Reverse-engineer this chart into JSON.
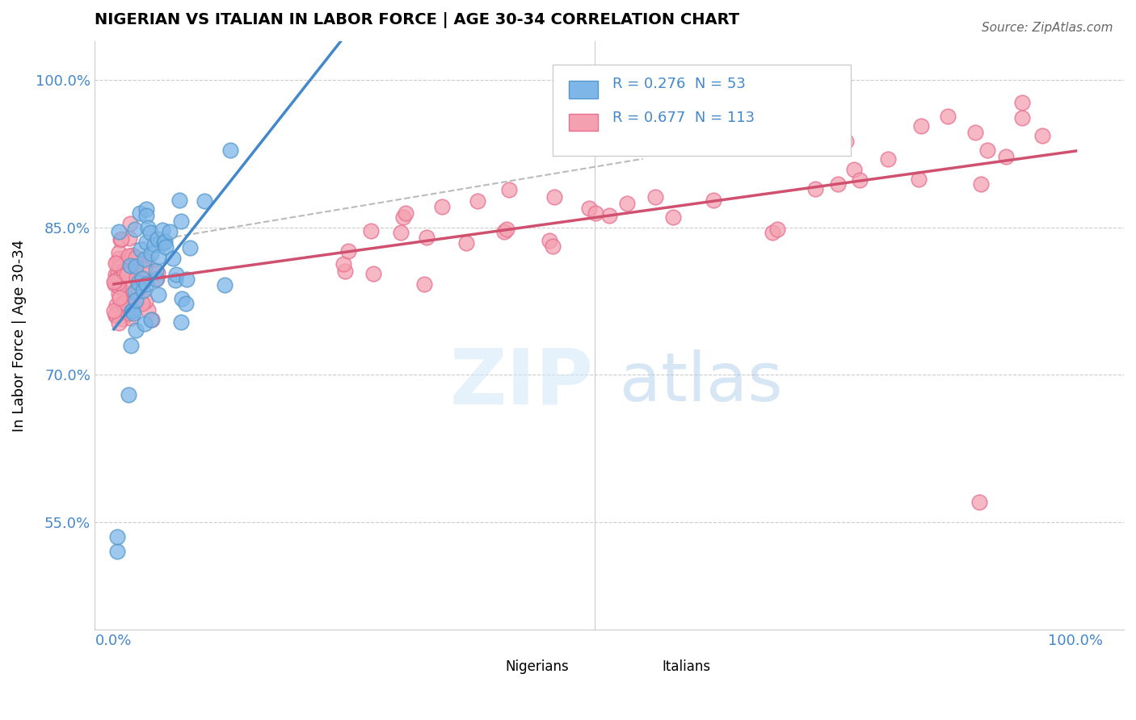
{
  "title": "NIGERIAN VS ITALIAN IN LABOR FORCE | AGE 30-34 CORRELATION CHART",
  "source": "Source: ZipAtlas.com",
  "ylabel": "In Labor Force | Age 30-34",
  "nigerian_color": "#7EB6E8",
  "italian_color": "#F4A0B0",
  "nigerian_edge": "#5599CC",
  "italian_edge": "#E87090",
  "nigerian_line_color": "#4488CC",
  "italian_line_color": "#D05070",
  "nigerian_R": 0.276,
  "nigerian_N": 53,
  "italian_R": 0.677,
  "italian_N": 113,
  "ytick_labels": [
    "55.0%",
    "70.0%",
    "85.0%",
    "100.0%"
  ],
  "yticks": [
    0.55,
    0.7,
    0.85,
    1.0
  ],
  "xlim": [
    -0.02,
    1.05
  ],
  "ylim": [
    0.44,
    1.04
  ],
  "watermark_zip": "ZIP",
  "watermark_atlas": "atlas",
  "title_fontsize": 14,
  "tick_fontsize": 13
}
